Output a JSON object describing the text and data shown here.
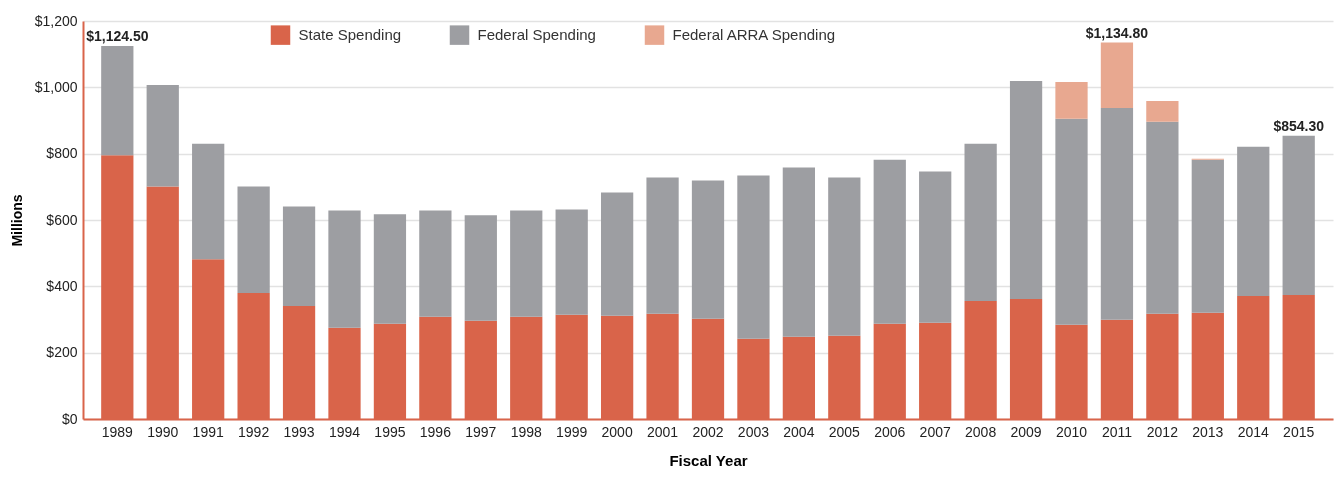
{
  "chart_data": {
    "type": "bar",
    "stacked": true,
    "xlabel": "Fiscal Year",
    "ylabel": "Millions",
    "categories": [
      "1989",
      "1990",
      "1991",
      "1992",
      "1993",
      "1994",
      "1995",
      "1996",
      "1997",
      "1998",
      "1999",
      "2000",
      "2001",
      "2002",
      "2003",
      "2004",
      "2005",
      "2006",
      "2007",
      "2008",
      "2009",
      "2010",
      "2011",
      "2012",
      "2013",
      "2014",
      "2015"
    ],
    "series": [
      {
        "name": "State Spending",
        "color": "#d9644a",
        "values": [
          795,
          701,
          482,
          380,
          341,
          275,
          287,
          308,
          296,
          308,
          314,
          311,
          317,
          302,
          242,
          248,
          251,
          287,
          290,
          356,
          362,
          284,
          299,
          317,
          320,
          371,
          374
        ]
      },
      {
        "name": "Federal Spending",
        "color": "#9d9ea2",
        "values": [
          329.5,
          306,
          348,
          321,
          300,
          354,
          330,
          321,
          318,
          321,
          318,
          372,
          411,
          417,
          492,
          510,
          477,
          495,
          456,
          474,
          657,
          621,
          639,
          579,
          462,
          450,
          480.3
        ]
      },
      {
        "name": "Federal ARRA Spending",
        "color": "#e8a890",
        "values": [
          null,
          null,
          null,
          null,
          null,
          null,
          null,
          null,
          null,
          null,
          null,
          null,
          null,
          null,
          null,
          null,
          null,
          null,
          null,
          null,
          null,
          111,
          196.8,
          63,
          3,
          null,
          null
        ]
      }
    ],
    "totals": [
      "$1,124.50",
      null,
      null,
      null,
      null,
      null,
      null,
      null,
      null,
      null,
      null,
      null,
      null,
      null,
      null,
      null,
      null,
      null,
      null,
      null,
      null,
      null,
      "$1,134.80",
      null,
      null,
      null,
      "$854.30"
    ],
    "ylim": [
      0,
      1200
    ],
    "yticks": [
      {
        "value": 0,
        "label": "$0"
      },
      {
        "value": 200,
        "label": "$200"
      },
      {
        "value": 400,
        "label": "$400"
      },
      {
        "value": 600,
        "label": "$600"
      },
      {
        "value": 800,
        "label": "$800"
      },
      {
        "value": 1000,
        "label": "$1,000"
      },
      {
        "value": 1200,
        "label": "$1,200"
      }
    ],
    "grid": "y",
    "legend": "top"
  }
}
